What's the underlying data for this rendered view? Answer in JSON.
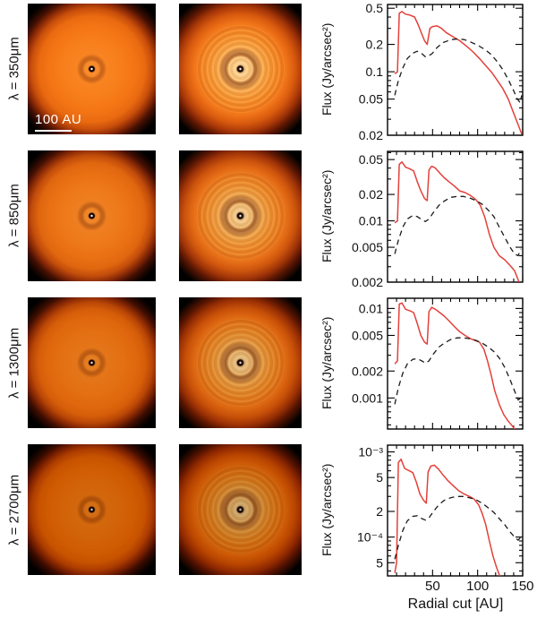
{
  "figure": {
    "rows": [
      {
        "label": "λ = 350μm"
      },
      {
        "label": "λ = 850μm"
      },
      {
        "label": "λ = 1300μm"
      },
      {
        "label": "λ = 2700μm"
      }
    ],
    "scale_bar_label": "100 AU",
    "xlabel": "Radial cut [AU]"
  },
  "colors": {
    "solid_line": "#e4403a",
    "dashed_line": "#1a1a1a",
    "axis": "#000000",
    "disk_bright_orange": "#f8831f",
    "disk_inner_cream": "#ffdda6",
    "panel_background": "#000000",
    "page_background": "#ffffff"
  },
  "chart_data": [
    {
      "type": "line",
      "wavelength": "350μm",
      "ylabel": "Flux (Jy/arcsec²)",
      "xlim": [
        0,
        150
      ],
      "ylim": [
        0.02,
        0.55
      ],
      "grid": false,
      "legend": "none",
      "yticks": [
        {
          "v": 0.5,
          "label": "0.5"
        },
        {
          "v": 0.2,
          "label": "0.2"
        },
        {
          "v": 0.1,
          "label": "0.1"
        },
        {
          "v": 0.05,
          "label": "0.05"
        },
        {
          "v": 0.02,
          "label": "0.02"
        }
      ],
      "xticks_major": [
        50,
        100,
        150
      ],
      "xtick_minor_step": 10,
      "show_xtick_labels": false,
      "series": [
        {
          "name": "red-solid",
          "style": "solid",
          "color": "#e4403a",
          "x": [
            8,
            11,
            13,
            16,
            20,
            25,
            30,
            34,
            38,
            41,
            44,
            47,
            50,
            55,
            60,
            65,
            72,
            80,
            88,
            95,
            102,
            108,
            115,
            122,
            128,
            134,
            140,
            145,
            149
          ],
          "y": [
            0.095,
            0.1,
            0.44,
            0.46,
            0.43,
            0.42,
            0.4,
            0.33,
            0.26,
            0.22,
            0.2,
            0.3,
            0.315,
            0.32,
            0.3,
            0.27,
            0.245,
            0.22,
            0.19,
            0.165,
            0.14,
            0.12,
            0.1,
            0.08,
            0.065,
            0.05,
            0.035,
            0.026,
            0.0205
          ]
        },
        {
          "name": "black-dashed",
          "style": "dashed",
          "color": "#1a1a1a",
          "x": [
            8,
            12,
            17,
            22,
            28,
            33,
            38,
            42,
            46,
            50,
            55,
            62,
            70,
            78,
            85,
            92,
            100,
            108,
            115,
            122,
            128,
            134,
            140,
            144,
            147,
            149
          ],
          "y": [
            0.055,
            0.08,
            0.11,
            0.14,
            0.16,
            0.168,
            0.158,
            0.146,
            0.15,
            0.16,
            0.185,
            0.21,
            0.225,
            0.23,
            0.226,
            0.213,
            0.196,
            0.176,
            0.155,
            0.128,
            0.105,
            0.082,
            0.062,
            0.05,
            0.046,
            0.055
          ]
        }
      ]
    },
    {
      "type": "line",
      "wavelength": "850μm",
      "ylabel": "Flux (Jy/arcsec²)",
      "xlim": [
        0,
        150
      ],
      "ylim": [
        0.002,
        0.062
      ],
      "grid": false,
      "legend": "none",
      "yticks": [
        {
          "v": 0.05,
          "label": "0.05"
        },
        {
          "v": 0.02,
          "label": "0.02"
        },
        {
          "v": 0.01,
          "label": "0.01"
        },
        {
          "v": 0.005,
          "label": "0.005"
        },
        {
          "v": 0.002,
          "label": "0.002"
        }
      ],
      "xticks_major": [
        50,
        100,
        150
      ],
      "xtick_minor_step": 10,
      "show_xtick_labels": false,
      "series": [
        {
          "name": "red-solid",
          "style": "solid",
          "color": "#e4403a",
          "x": [
            8,
            11,
            13,
            16,
            20,
            25,
            29,
            33,
            37,
            41,
            44,
            46,
            49,
            53,
            58,
            63,
            68,
            74,
            80,
            86,
            92,
            98,
            103,
            108,
            113,
            118,
            124,
            130,
            136,
            141,
            146
          ],
          "y": [
            0.0095,
            0.01,
            0.044,
            0.047,
            0.041,
            0.039,
            0.037,
            0.028,
            0.022,
            0.018,
            0.017,
            0.038,
            0.042,
            0.04,
            0.035,
            0.031,
            0.028,
            0.025,
            0.022,
            0.021,
            0.0195,
            0.0175,
            0.015,
            0.011,
            0.007,
            0.005,
            0.004,
            0.0036,
            0.0031,
            0.0027,
            0.002
          ]
        },
        {
          "name": "black-dashed",
          "style": "dashed",
          "color": "#1a1a1a",
          "x": [
            8,
            12,
            17,
            22,
            28,
            33,
            38,
            42,
            46,
            51,
            57,
            63,
            70,
            77,
            84,
            91,
            98,
            105,
            112,
            118,
            124,
            130,
            136,
            141,
            145,
            148
          ],
          "y": [
            0.0042,
            0.006,
            0.0085,
            0.0105,
            0.0115,
            0.0112,
            0.0103,
            0.0098,
            0.0105,
            0.0125,
            0.015,
            0.0168,
            0.0185,
            0.019,
            0.019,
            0.0183,
            0.017,
            0.0155,
            0.0132,
            0.0112,
            0.0085,
            0.0065,
            0.005,
            0.0042,
            0.004,
            0.0048
          ]
        }
      ]
    },
    {
      "type": "line",
      "wavelength": "1300μm",
      "ylabel": "Flux (Jy/arcsec²)",
      "xlim": [
        0,
        150
      ],
      "ylim": [
        0.00045,
        0.013
      ],
      "grid": false,
      "legend": "none",
      "yticks": [
        {
          "v": 0.01,
          "label": "0.01"
        },
        {
          "v": 0.005,
          "label": "0.005"
        },
        {
          "v": 0.002,
          "label": "0.002"
        },
        {
          "v": 0.001,
          "label": "0.001"
        }
      ],
      "xticks_major": [
        50,
        100,
        150
      ],
      "xtick_minor_step": 10,
      "show_xtick_labels": false,
      "series": [
        {
          "name": "red-solid",
          "style": "solid",
          "color": "#e4403a",
          "x": [
            8,
            11,
            13,
            16,
            20,
            25,
            29,
            33,
            37,
            41,
            44,
            46,
            49,
            53,
            58,
            63,
            68,
            74,
            80,
            86,
            92,
            97,
            102,
            107,
            111,
            115,
            119,
            124,
            129,
            134,
            139,
            143
          ],
          "y": [
            0.0024,
            0.0026,
            0.0112,
            0.0115,
            0.0098,
            0.0094,
            0.009,
            0.0068,
            0.005,
            0.0042,
            0.004,
            0.0092,
            0.0103,
            0.0098,
            0.009,
            0.0082,
            0.0073,
            0.0063,
            0.0055,
            0.005,
            0.0046,
            0.0044,
            0.0042,
            0.0035,
            0.0026,
            0.0018,
            0.0012,
            0.00085,
            0.00065,
            0.00055,
            0.00048,
            0.00042
          ]
        },
        {
          "name": "black-dashed",
          "style": "dashed",
          "color": "#1a1a1a",
          "x": [
            8,
            12,
            17,
            22,
            28,
            33,
            38,
            42,
            46,
            51,
            57,
            63,
            70,
            77,
            84,
            91,
            98,
            105,
            112,
            118,
            124,
            130,
            136,
            141,
            145,
            148
          ],
          "y": [
            0.00085,
            0.0013,
            0.0019,
            0.0024,
            0.0027,
            0.00275,
            0.0026,
            0.00245,
            0.0026,
            0.0031,
            0.0037,
            0.0041,
            0.0045,
            0.0047,
            0.0047,
            0.0046,
            0.0044,
            0.0041,
            0.0037,
            0.0033,
            0.0028,
            0.0022,
            0.0016,
            0.0012,
            0.00095,
            0.001
          ]
        }
      ]
    },
    {
      "type": "line",
      "wavelength": "2700μm",
      "ylabel": "Flux (Jy/arcsec²)",
      "xlim": [
        0,
        150
      ],
      "ylim": [
        3.5e-05,
        0.0012
      ],
      "grid": false,
      "legend": "none",
      "yticks": [
        {
          "v": 0.001,
          "label": "10⁻³"
        },
        {
          "v": 0.0005,
          "label": "5"
        },
        {
          "v": 0.0002,
          "label": "2"
        },
        {
          "v": 0.0001,
          "label": "10⁻⁴"
        },
        {
          "v": 5e-05,
          "label": "5"
        }
      ],
      "xticks_major": [
        50,
        100,
        150
      ],
      "xtick_minor_step": 10,
      "show_xtick_labels": true,
      "series": [
        {
          "name": "red-solid",
          "style": "solid",
          "color": "#e4403a",
          "x": [
            8,
            10,
            12,
            15,
            19,
            24,
            28,
            32,
            36,
            40,
            43,
            45,
            48,
            52,
            57,
            62,
            67,
            73,
            79,
            85,
            91,
            96,
            101,
            105,
            109,
            113,
            117,
            121,
            125
          ],
          "y": [
            3.8e-05,
            5e-05,
            0.00075,
            0.00082,
            0.00064,
            0.0006,
            0.00057,
            0.00044,
            0.00032,
            0.00027,
            0.00025,
            0.00058,
            0.00068,
            0.0007,
            0.00062,
            0.00053,
            0.00046,
            0.0004,
            0.00035,
            0.00032,
            0.0003,
            0.00028,
            0.00024,
            0.00019,
            0.00014,
            9e-05,
            6e-05,
            4.4e-05,
            3.4e-05
          ]
        },
        {
          "name": "black-dashed",
          "style": "dashed",
          "color": "#1a1a1a",
          "x": [
            8,
            12,
            17,
            22,
            28,
            33,
            38,
            42,
            46,
            51,
            57,
            63,
            70,
            77,
            84,
            91,
            98,
            105,
            112,
            118,
            124,
            130,
            136,
            141,
            145,
            148
          ],
          "y": [
            5.5e-05,
            8e-05,
            0.00012,
            0.000155,
            0.000175,
            0.000178,
            0.000165,
            0.000158,
            0.000168,
            0.0002,
            0.00024,
            0.00027,
            0.00029,
            0.0003,
            0.0003,
            0.00029,
            0.000275,
            0.00025,
            0.00022,
            0.000195,
            0.000165,
            0.00014,
            0.000115,
            0.0001,
            9.2e-05,
            0.0001
          ]
        }
      ]
    }
  ]
}
